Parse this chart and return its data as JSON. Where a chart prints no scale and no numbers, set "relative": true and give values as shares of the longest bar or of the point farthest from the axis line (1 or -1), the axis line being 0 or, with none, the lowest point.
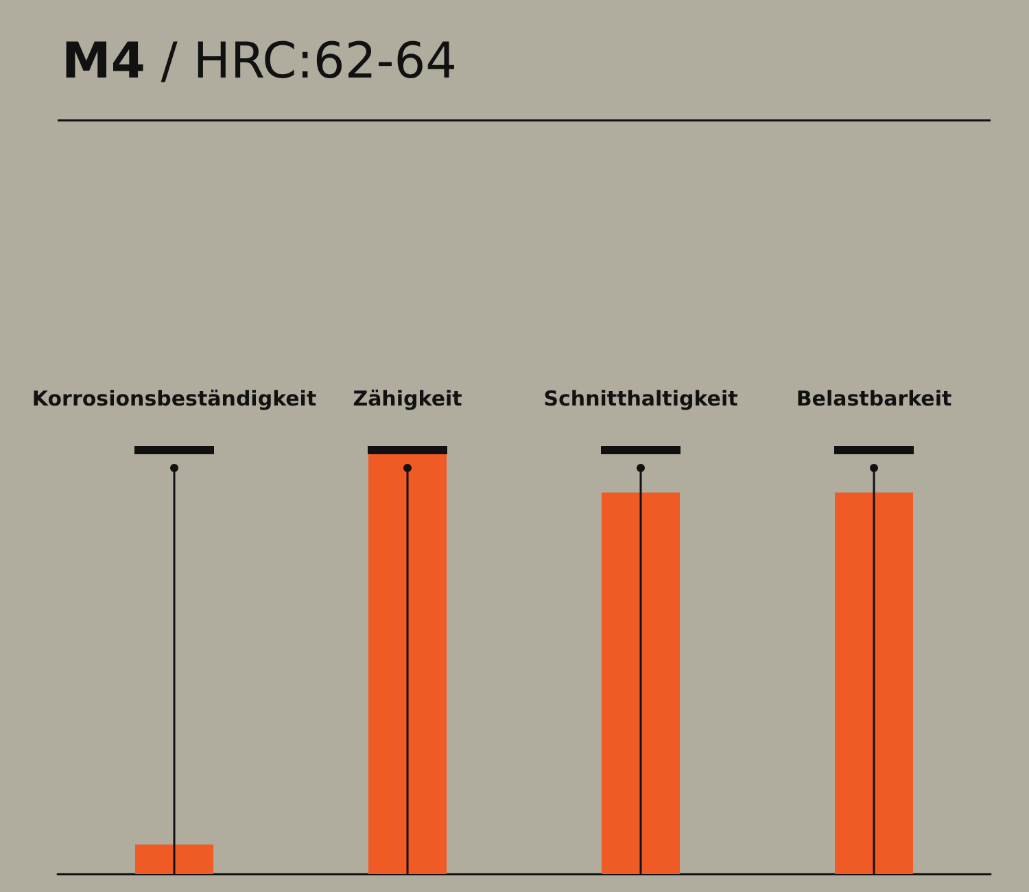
{
  "chart_data": {
    "type": "bar",
    "title": "M4 / HRC:62-64",
    "relative": true,
    "categories": [
      "Korrosionsbeständigkeit",
      "Zähigkeit",
      "Schnitthaltigkeit",
      "Belastbarkeit"
    ],
    "values": [
      0.07,
      1,
      0.9,
      0.9
    ],
    "color": "#f05a24",
    "tick_labels": "x"
  }
}
